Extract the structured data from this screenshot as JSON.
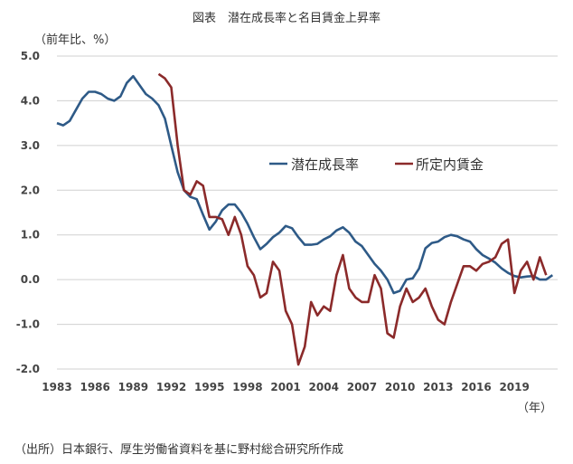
{
  "chart_data": {
    "type": "line",
    "title": "図表　潜在成長率と名目賃金上昇率",
    "ylabel": "（前年比、%）",
    "xlabel": "（年）",
    "ylim": [
      -2.0,
      5.0
    ],
    "yticks": [
      "5.0",
      "4.0",
      "3.0",
      "2.0",
      "1.0",
      "0.0",
      "-1.0",
      "-2.0"
    ],
    "ytick_values": [
      5,
      4,
      3,
      2,
      1,
      0,
      -1,
      -2
    ],
    "xticks": [
      "1983",
      "1986",
      "1989",
      "1992",
      "1995",
      "1998",
      "2001",
      "2004",
      "2007",
      "2010",
      "2013",
      "2016",
      "2019"
    ],
    "xlim": [
      1983,
      2022.5
    ],
    "grid": true,
    "legend_position": "center-right",
    "series": [
      {
        "name": "潜在成長率",
        "color": "#2e5a87",
        "start": 1983,
        "step": 0.5,
        "values": [
          3.5,
          3.45,
          3.55,
          3.8,
          4.05,
          4.2,
          4.2,
          4.15,
          4.05,
          4.0,
          4.1,
          4.4,
          4.55,
          4.35,
          4.15,
          4.05,
          3.9,
          3.6,
          3.0,
          2.4,
          2.0,
          1.85,
          1.8,
          1.45,
          1.12,
          1.3,
          1.55,
          1.68,
          1.68,
          1.5,
          1.25,
          0.95,
          0.68,
          0.8,
          0.95,
          1.05,
          1.2,
          1.15,
          0.95,
          0.78,
          0.78,
          0.8,
          0.9,
          0.97,
          1.1,
          1.17,
          1.05,
          0.85,
          0.75,
          0.55,
          0.35,
          0.2,
          0.0,
          -0.3,
          -0.25,
          0.0,
          0.03,
          0.25,
          0.7,
          0.82,
          0.85,
          0.95,
          1.0,
          0.97,
          0.9,
          0.85,
          0.68,
          0.55,
          0.47,
          0.38,
          0.25,
          0.15,
          0.08,
          0.05,
          0.07,
          0.08,
          0.0,
          0.0,
          0.1
        ]
      },
      {
        "name": "所定内賃金",
        "color": "#8b2a2a",
        "start": 1991,
        "step": 0.5,
        "values": [
          4.6,
          4.5,
          4.3,
          3.0,
          2.0,
          1.9,
          2.2,
          2.1,
          1.4,
          1.4,
          1.35,
          1.0,
          1.4,
          1.0,
          0.3,
          0.1,
          -0.4,
          -0.3,
          0.4,
          0.2,
          -0.7,
          -1.0,
          -1.9,
          -1.5,
          -0.5,
          -0.8,
          -0.6,
          -0.7,
          0.1,
          0.55,
          -0.2,
          -0.4,
          -0.5,
          -0.5,
          0.1,
          -0.2,
          -1.2,
          -1.3,
          -0.6,
          -0.2,
          -0.5,
          -0.4,
          -0.2,
          -0.6,
          -0.9,
          -1.0,
          -0.5,
          -0.1,
          0.3,
          0.3,
          0.2,
          0.35,
          0.4,
          0.5,
          0.8,
          0.9,
          -0.3,
          0.2,
          0.4,
          0.0,
          0.5,
          0.1
        ]
      }
    ],
    "negative_tick_color": "#8b2a2a"
  },
  "source": "（出所）日本銀行、厚生労働省資料を基に野村総合研究所作成"
}
